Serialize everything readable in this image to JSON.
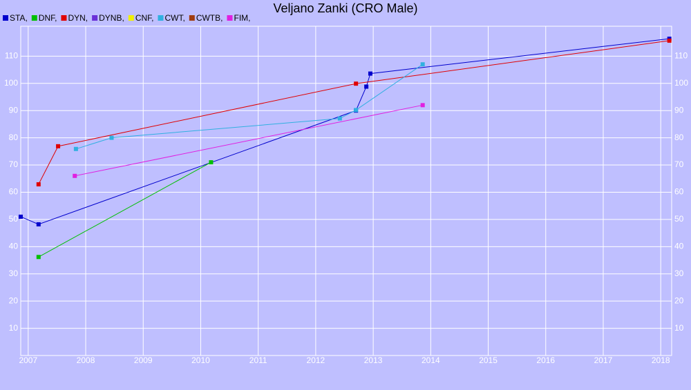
{
  "chart_data": {
    "type": "line",
    "title": "Veljano Zanki (CRO Male)",
    "xlim": [
      2006.87,
      2018.19
    ],
    "xticks": [
      2007,
      2008,
      2009,
      2010,
      2011,
      2012,
      2013,
      2014,
      2015,
      2016,
      2017,
      2018
    ],
    "ylim": [
      0,
      121
    ],
    "yticks": [
      10,
      20,
      30,
      40,
      50,
      60,
      70,
      80,
      90,
      100,
      110
    ],
    "grid": true,
    "series": [
      {
        "name": "STA,",
        "color": "#0000cc",
        "x": [
          2006.87,
          2007.18,
          2012.7,
          2012.88,
          2012.95,
          2018.15
        ],
        "values": [
          51,
          48.2,
          90,
          98.8,
          103.6,
          116.4
        ]
      },
      {
        "name": "DNF,",
        "color": "#00c000",
        "x": [
          2007.18,
          2010.18
        ],
        "values": [
          36.2,
          71
        ]
      },
      {
        "name": "DYN,",
        "color": "#e00000",
        "x": [
          2007.18,
          2007.52,
          2012.7,
          2018.15
        ],
        "values": [
          62.9,
          76.9,
          99.9,
          115.7
        ]
      },
      {
        "name": "DYNB,",
        "color": "#6a2fd8",
        "x": [],
        "values": []
      },
      {
        "name": "CNF,",
        "color": "#f0f000",
        "x": [],
        "values": []
      },
      {
        "name": "CWT,",
        "color": "#30b0e0",
        "x": [
          2007.83,
          2008.45,
          2012.42,
          2012.7,
          2013.86
        ],
        "values": [
          75.9,
          80,
          87.1,
          90.2,
          107
        ]
      },
      {
        "name": "CWTB,",
        "color": "#a03c10",
        "x": [],
        "values": []
      },
      {
        "name": "FIM,",
        "color": "#e020e0",
        "x": [
          2007.81,
          2013.86
        ],
        "values": [
          66,
          92
        ]
      }
    ]
  }
}
